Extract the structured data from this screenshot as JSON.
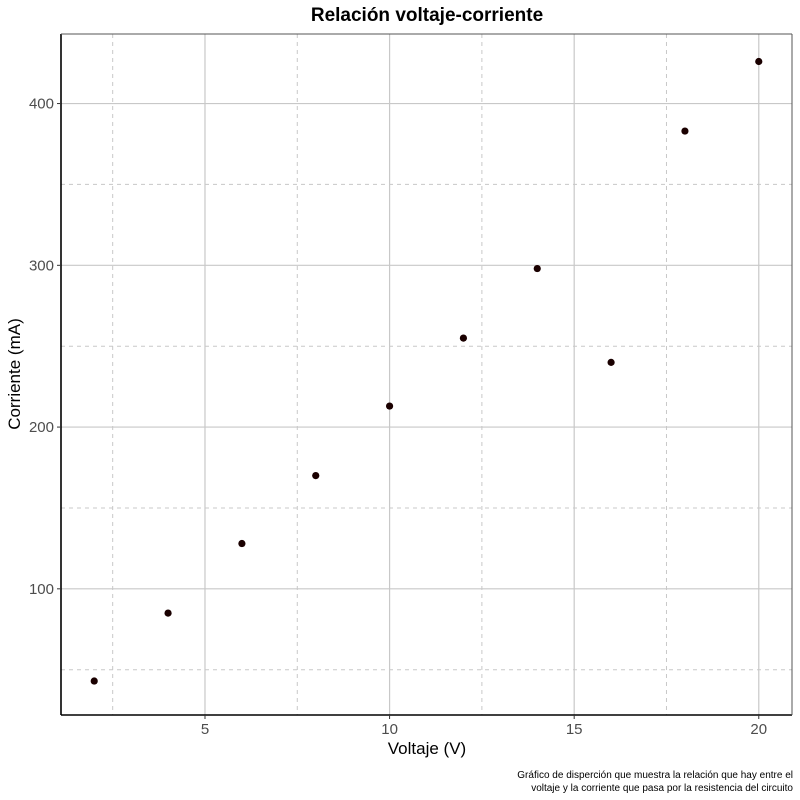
{
  "chart_data": {
    "type": "scatter",
    "title": "Relación voltaje-corriente",
    "xlabel": "Voltaje (V)",
    "ylabel": "Corriente (mA)",
    "caption_lines": [
      "Gráfico de disperción que muestra la relación que hay entre el",
      "voltaje y la corriente que pasa por la resistencia del circuito"
    ],
    "xlim": [
      1.1,
      20.9
    ],
    "ylim": [
      22,
      443
    ],
    "x_ticks": [
      5,
      10,
      15,
      20
    ],
    "x_tick_labels": [
      "5",
      "10",
      "15",
      "20"
    ],
    "x_minor_ticks": [
      2.5,
      7.5,
      12.5,
      17.5
    ],
    "y_ticks": [
      100,
      200,
      300,
      400
    ],
    "y_tick_labels": [
      "100",
      "200",
      "300",
      "400"
    ],
    "y_minor_ticks": [
      50,
      150,
      250,
      350
    ],
    "grid": true,
    "point_color": "#1a0000",
    "series": [
      {
        "x": [
          2,
          4,
          6,
          8,
          10,
          12,
          14,
          16,
          18,
          20
        ],
        "y": [
          43,
          85,
          128,
          170,
          213,
          255,
          298,
          240,
          383,
          426
        ]
      }
    ]
  }
}
